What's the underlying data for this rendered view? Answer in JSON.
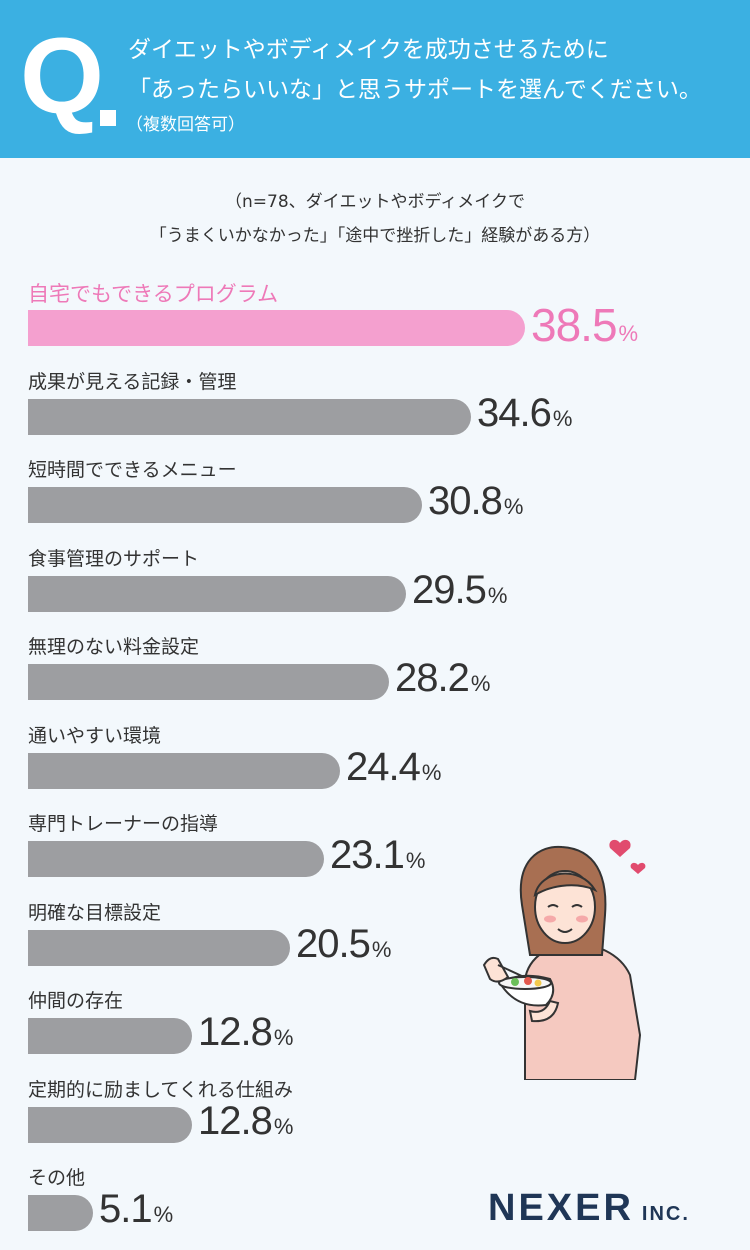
{
  "header": {
    "q_mark": "Q",
    "line1": "ダイエットやボディメイクを成功させるために",
    "line2": "「あったらいいな」と思うサポートを選んでください。",
    "note": "（複数回答可）"
  },
  "subtitle": {
    "line1": "（n=78、ダイエットやボディメイクで",
    "line2": "「うまくいかなかった」「途中で挫折した」経験がある方）"
  },
  "colors": {
    "header_bg": "#3bb0e2",
    "highlight": "#ee79b8",
    "bar_default": "#9d9ea1",
    "bar_highlight": "#f4a0cf"
  },
  "chart_data": {
    "type": "bar",
    "orientation": "horizontal",
    "unit": "%",
    "categories": [
      "自宅でもできるプログラム",
      "成果が見える記録・管理",
      "短時間でできるメニュー",
      "食事管理のサポート",
      "無理のない料金設定",
      "通いやすい環境",
      "専門トレーナーの指導",
      "明確な目標設定",
      "仲間の存在",
      "定期的に励ましてくれる仕組み",
      "その他"
    ],
    "values": [
      38.5,
      34.6,
      30.8,
      29.5,
      28.2,
      24.4,
      23.1,
      20.5,
      12.8,
      12.8,
      5.1
    ],
    "highlight_index": 0
  },
  "logo": {
    "main": "NEXER",
    "suffix": "INC."
  }
}
